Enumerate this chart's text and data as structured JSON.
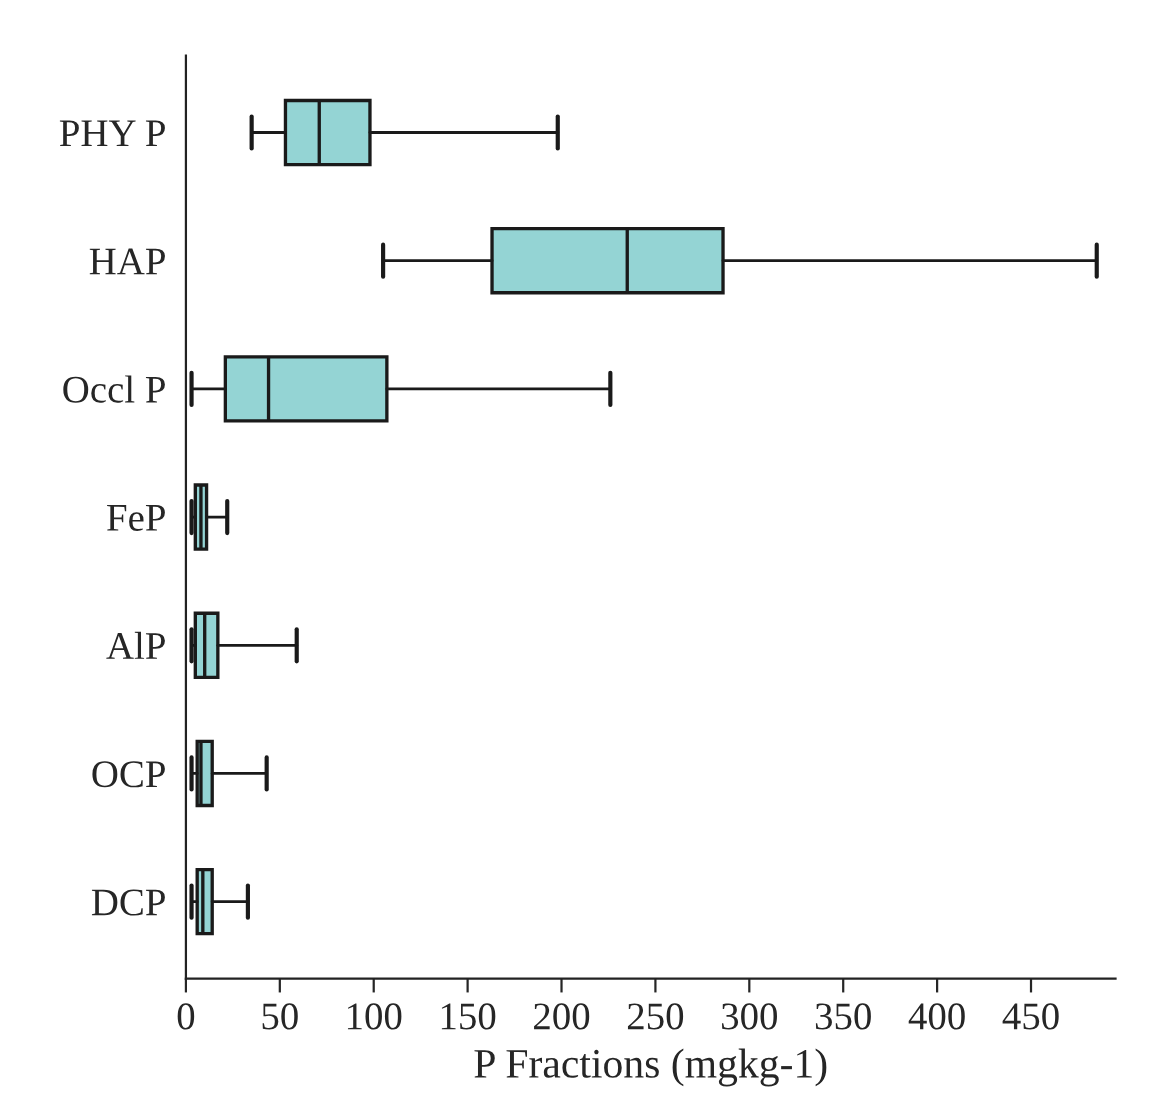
{
  "chart_data": {
    "type": "box",
    "orientation": "horizontal",
    "xlabel": "P Fractions (mgkg-1)",
    "categories": [
      "PHY P",
      "HAP",
      "Occl P",
      "FeP",
      "AlP",
      "OCP",
      "DCP"
    ],
    "color": "#94d4d4",
    "boxes": [
      {
        "low": 35,
        "q1": 53,
        "median": 71,
        "q3": 98,
        "high": 198
      },
      {
        "low": 105,
        "q1": 163,
        "median": 235,
        "q3": 286,
        "high": 485
      },
      {
        "low": 3,
        "q1": 21,
        "median": 44,
        "q3": 107,
        "high": 226
      },
      {
        "low": 3,
        "q1": 5,
        "median": 8,
        "q3": 11,
        "high": 22
      },
      {
        "low": 3,
        "q1": 5,
        "median": 10,
        "q3": 17,
        "high": 59
      },
      {
        "low": 3,
        "q1": 6,
        "median": 8,
        "q3": 14,
        "high": 43
      },
      {
        "low": 3,
        "q1": 6,
        "median": 9,
        "q3": 14,
        "high": 33
      }
    ],
    "xlim": [
      0,
      495
    ],
    "xticks": [
      0,
      50,
      100,
      150,
      200,
      250,
      300,
      350,
      400,
      450
    ],
    "grid": false
  }
}
